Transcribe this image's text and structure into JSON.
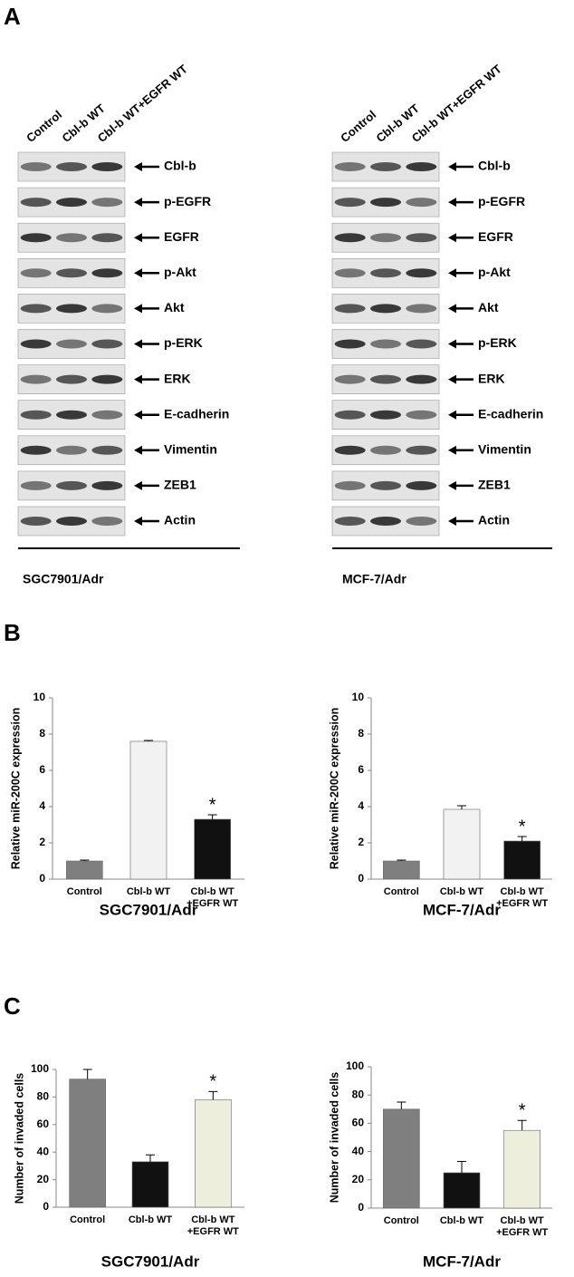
{
  "panel_labels": [
    "A",
    "B",
    "C"
  ],
  "blots": [
    {
      "lanes": [
        "Control",
        "Cbl-b WT",
        "Cbl-b WT+EGFR WT"
      ],
      "proteins": [
        "Cbl-b",
        "p-EGFR",
        "EGFR",
        "p-Akt",
        "Akt",
        "p-ERK",
        "ERK",
        "E-cadherin",
        "Vimentin",
        "ZEB1",
        "Actin"
      ],
      "cell_line": "SGC7901/Adr"
    },
    {
      "lanes": [
        "Control",
        "Cbl-b WT",
        "Cbl-b WT+EGFR WT"
      ],
      "proteins": [
        "Cbl-b",
        "p-EGFR",
        "EGFR",
        "p-Akt",
        "Akt",
        "p-ERK",
        "ERK",
        "E-cadherin",
        "Vimentin",
        "ZEB1",
        "Actin"
      ],
      "cell_line": "MCF-7/Adr"
    }
  ],
  "chart_data": [
    {
      "type": "bar",
      "title": "SGC7901/Adr",
      "y_label": "Relative miR-200C expression",
      "categories": [
        "Control",
        "Cbl-b WT",
        "Cbl-b WT +EGFR WT"
      ],
      "values": [
        1,
        7.6,
        3.3
      ],
      "errors": [
        0.05,
        0.05,
        0.25
      ],
      "colors": [
        "#7f7f7f",
        "#f2f2f2",
        "#111111"
      ],
      "value_annotations": [
        null,
        null,
        "*"
      ],
      "ylim": [
        0,
        10
      ],
      "yticks": [
        0,
        2,
        4,
        6,
        8,
        10
      ]
    },
    {
      "type": "bar",
      "title": "MCF-7/Adr",
      "y_label": "Relative miR-200C expression",
      "categories": [
        "Control",
        "Cbl-b WT",
        "Cbl-b WT +EGFR WT"
      ],
      "values": [
        1,
        3.85,
        2.1
      ],
      "errors": [
        0.05,
        0.2,
        0.25
      ],
      "colors": [
        "#7f7f7f",
        "#f2f2f2",
        "#111111"
      ],
      "value_annotations": [
        null,
        null,
        "*"
      ],
      "ylim": [
        0,
        10
      ],
      "yticks": [
        0,
        2,
        4,
        6,
        8,
        10
      ]
    },
    {
      "type": "bar",
      "title": "SGC7901/Adr",
      "y_label": "Number of invaded cells",
      "categories": [
        "Control",
        "Cbl-b WT",
        "Cbl-b WT +EGFR WT"
      ],
      "values": [
        93,
        33,
        78
      ],
      "errors": [
        7,
        5,
        6
      ],
      "colors": [
        "#7f7f7f",
        "#111111",
        "#eeeedd"
      ],
      "value_annotations": [
        null,
        null,
        "*"
      ],
      "ylim": [
        0,
        100
      ],
      "yticks": [
        0,
        20,
        40,
        60,
        80,
        100
      ]
    },
    {
      "type": "bar",
      "title": "MCF-7/Adr",
      "y_label": "Number of invaded cells",
      "categories": [
        "Control",
        "Cbl-b WT",
        "Cbl-b WT +EGFR WT"
      ],
      "values": [
        70,
        25,
        55
      ],
      "errors": [
        5,
        8,
        7
      ],
      "colors": [
        "#7f7f7f",
        "#111111",
        "#eeeedd"
      ],
      "value_annotations": [
        null,
        null,
        "*"
      ],
      "ylim": [
        0,
        100
      ],
      "yticks": [
        0,
        20,
        40,
        60,
        80,
        100
      ]
    }
  ]
}
